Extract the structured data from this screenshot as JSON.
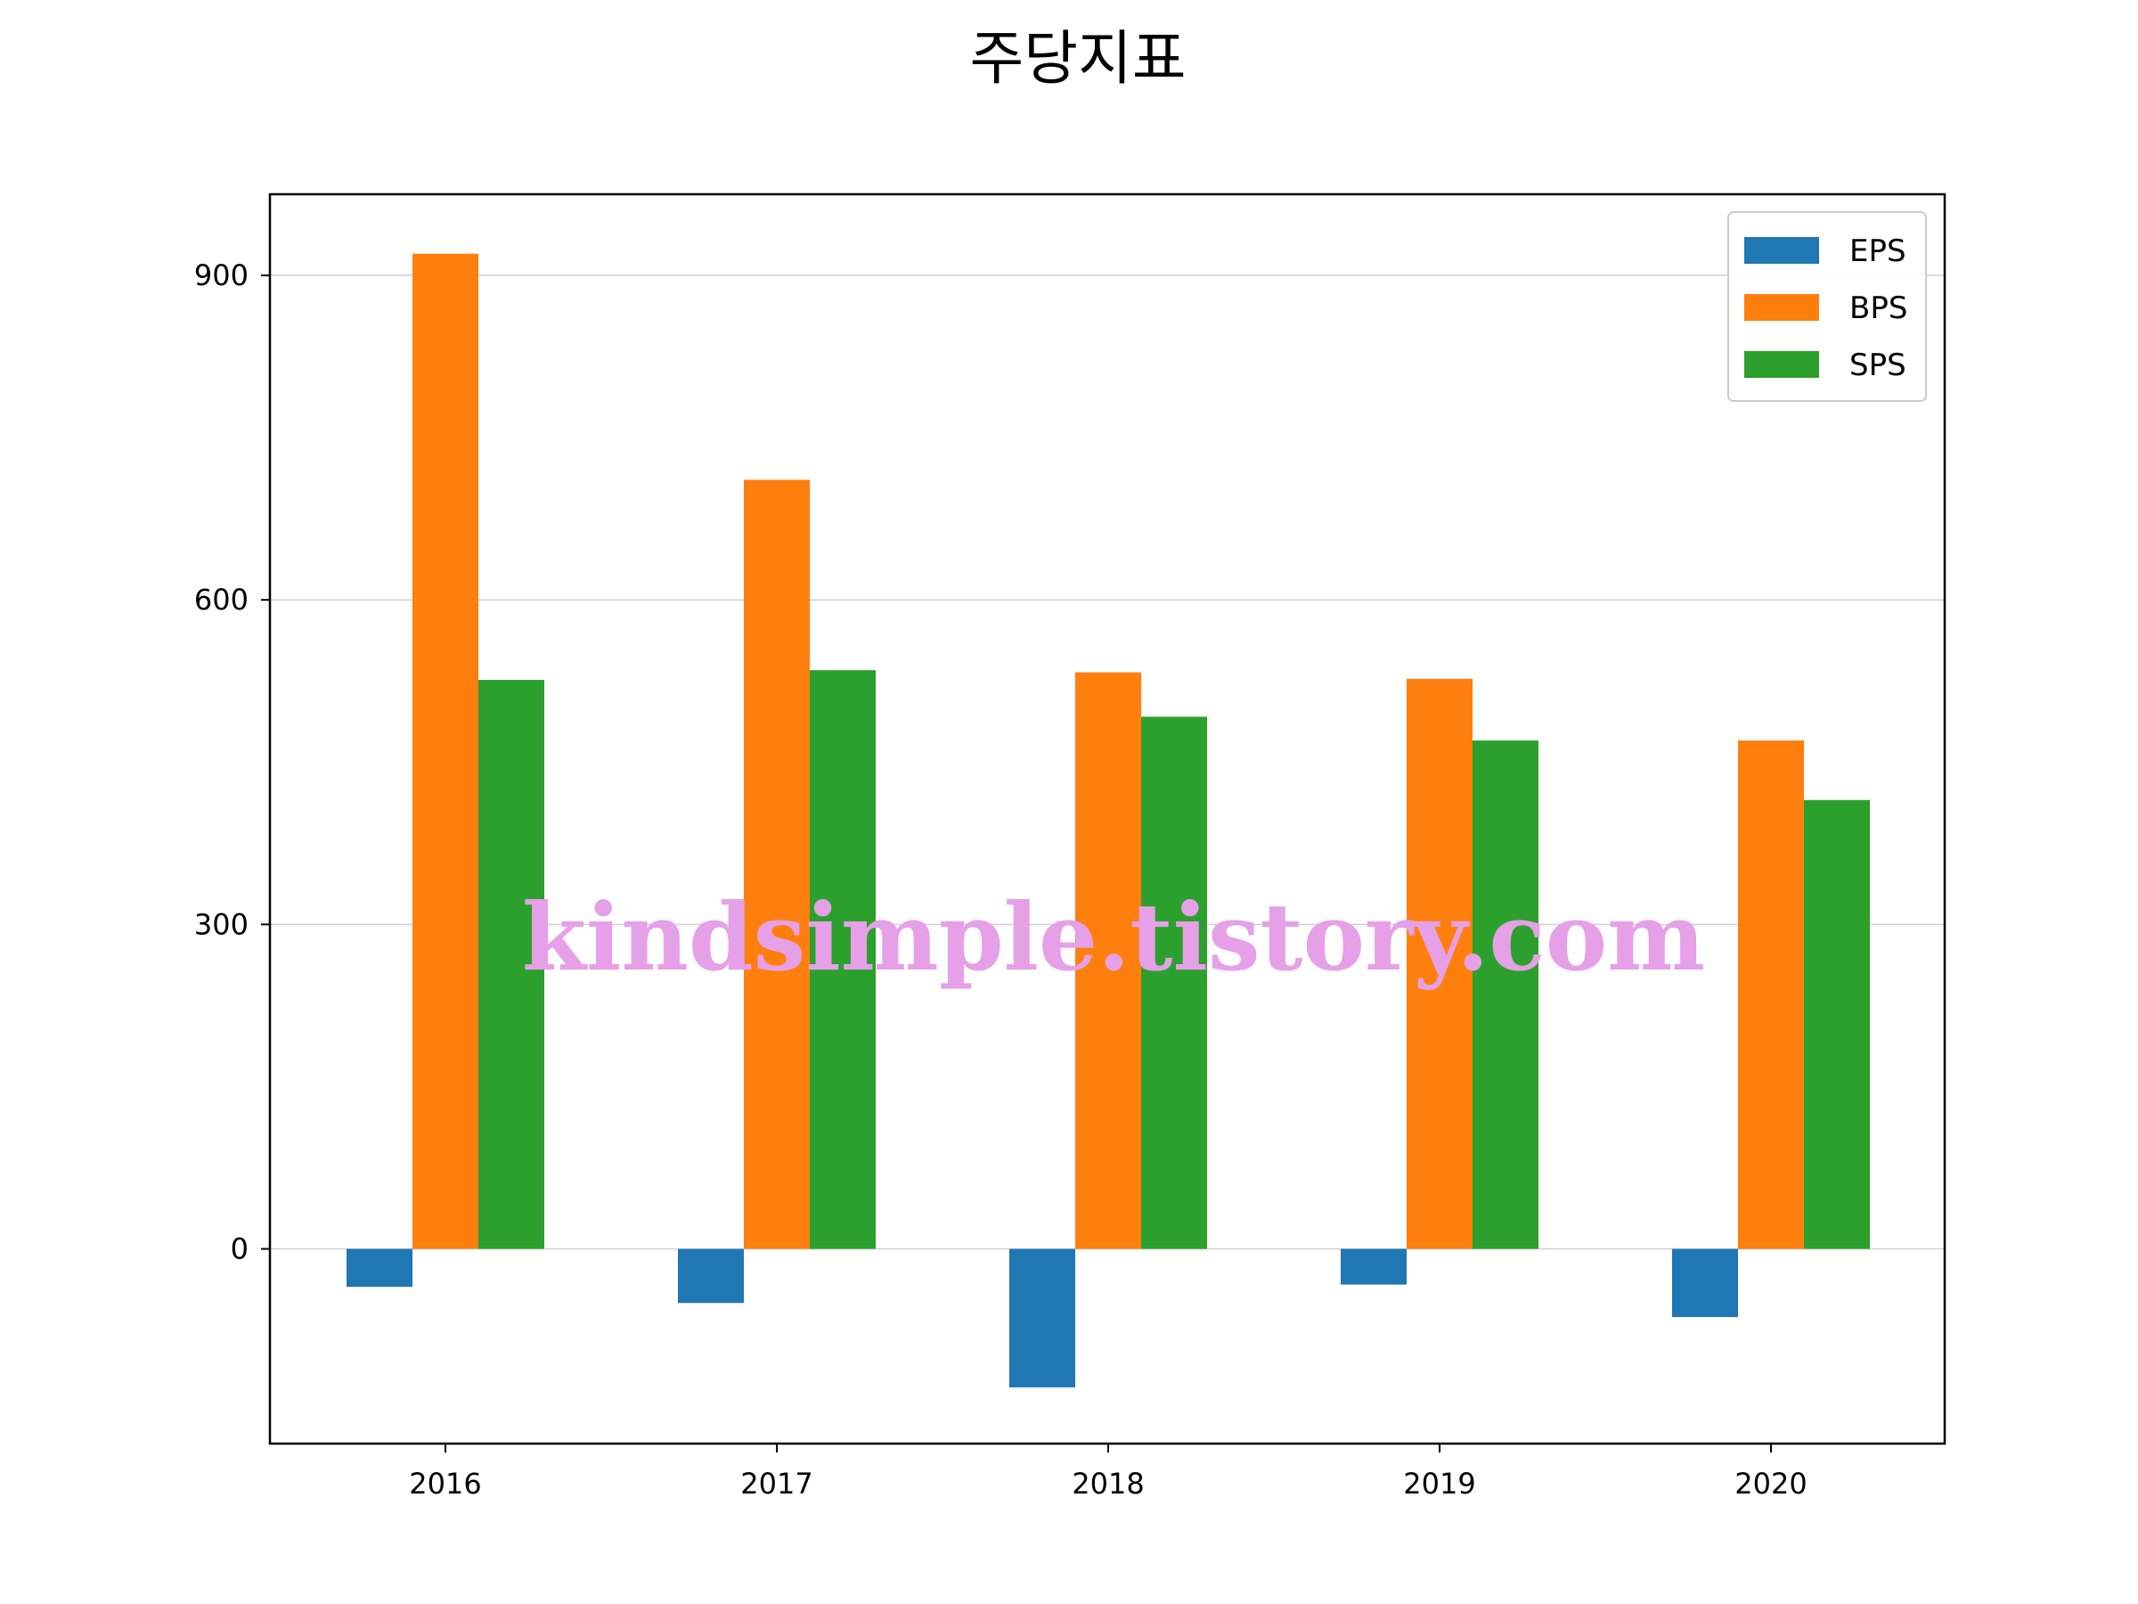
{
  "chart_data": {
    "type": "bar",
    "title": "주당지표",
    "xlabel": "",
    "ylabel": "",
    "categories": [
      "2016",
      "2017",
      "2018",
      "2019",
      "2020"
    ],
    "series": [
      {
        "name": "EPS",
        "color": "#1f77b4",
        "values": [
          -35,
          -50,
          -128,
          -33,
          -63
        ]
      },
      {
        "name": "BPS",
        "color": "#ff7f0e",
        "values": [
          920,
          711,
          533,
          527,
          470
        ]
      },
      {
        "name": "SPS",
        "color": "#2ca02c",
        "values": [
          526,
          535,
          492,
          470,
          415
        ]
      }
    ],
    "ylim": [
      -180,
      975
    ],
    "yticks": [
      "0",
      "300",
      "600",
      "900"
    ],
    "grid": "horizontal",
    "legend_position": "top-right"
  },
  "watermark": "kindsimple.tistory.com"
}
